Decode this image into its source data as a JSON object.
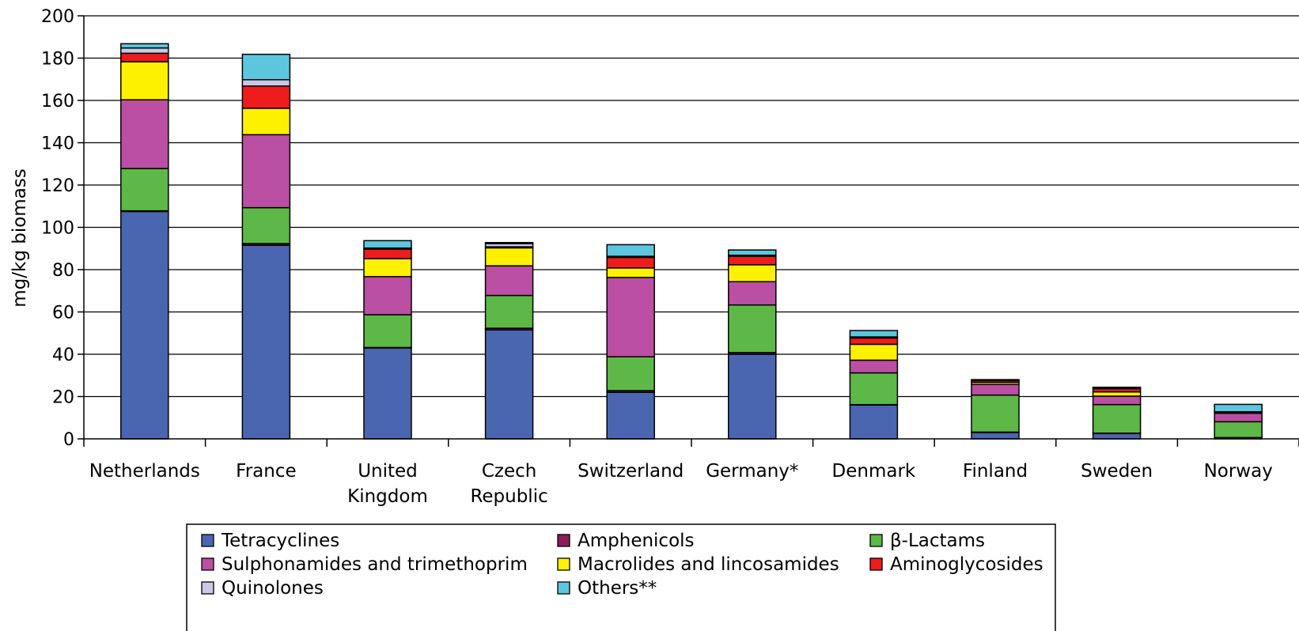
{
  "chart_data": {
    "type": "bar",
    "stacked": true,
    "categories": [
      "Netherlands",
      "France",
      "United Kingdom",
      "Czech Republic",
      "Switzerland",
      "Germany*",
      "Denmark",
      "Finland",
      "Sweden",
      "Norway"
    ],
    "category_lines": [
      [
        "Netherlands"
      ],
      [
        "France"
      ],
      [
        "United",
        "Kingdom"
      ],
      [
        "Czech",
        "Republic"
      ],
      [
        "Switzerland"
      ],
      [
        "Germany*"
      ],
      [
        "Denmark"
      ],
      [
        "Finland"
      ],
      [
        "Sweden"
      ],
      [
        "Norway"
      ]
    ],
    "ylabel": "mg/kg biomass",
    "xlabel": "",
    "ylim": [
      0,
      200
    ],
    "yticks": [
      0,
      20,
      40,
      60,
      80,
      100,
      120,
      140,
      160,
      180,
      200
    ],
    "grid": true,
    "legend_position": "bottom",
    "series": [
      {
        "name": "Tetracyclines",
        "color": "#4a66b0",
        "values": [
          107.5,
          91.5,
          43,
          51.5,
          22,
          40,
          16,
          3,
          2.5,
          0.5
        ]
      },
      {
        "name": "Amphenicols",
        "color": "#8c1d5a",
        "values": [
          0.3,
          0.8,
          0.2,
          0.8,
          0.8,
          0.8,
          0.2,
          0.2,
          0.2,
          0.1
        ]
      },
      {
        "name": "β-Lactams",
        "color": "#5db847",
        "values": [
          20,
          17,
          15.5,
          15.5,
          16,
          22.5,
          15,
          17.5,
          13.5,
          7.5
        ]
      },
      {
        "name": "Sulphonamides and trimethoprim",
        "color": "#bb4fa3",
        "values": [
          32.5,
          34.5,
          18,
          14,
          37.5,
          11,
          6,
          5,
          4,
          4
        ]
      },
      {
        "name": "Macrolides and lincosamides",
        "color": "#fdf100",
        "values": [
          18,
          12.5,
          8.5,
          8.5,
          4.5,
          8,
          7.5,
          1,
          2,
          0
        ]
      },
      {
        "name": "Aminoglycosides",
        "color": "#ee1c1c",
        "values": [
          4,
          10.5,
          4.5,
          0.5,
          5,
          4,
          3,
          0.8,
          1.5,
          0.5
        ]
      },
      {
        "name": "Quinolones",
        "color": "#c9c8e6",
        "values": [
          2.5,
          3,
          0.5,
          1.5,
          0.5,
          0.5,
          0.5,
          0.3,
          0.2,
          0.2
        ]
      },
      {
        "name": "Others**",
        "color": "#5cc6df",
        "values": [
          2,
          12,
          3.5,
          0.5,
          5.5,
          2.5,
          3,
          0.2,
          0.5,
          3.5
        ]
      }
    ],
    "legend_order": [
      [
        "Tetracyclines",
        "Amphenicols",
        "β-Lactams"
      ],
      [
        "Sulphonamides and trimethoprim",
        "Macrolides and lincosamides",
        "Aminoglycosides"
      ],
      [
        "Quinolones",
        "Others**"
      ]
    ]
  }
}
